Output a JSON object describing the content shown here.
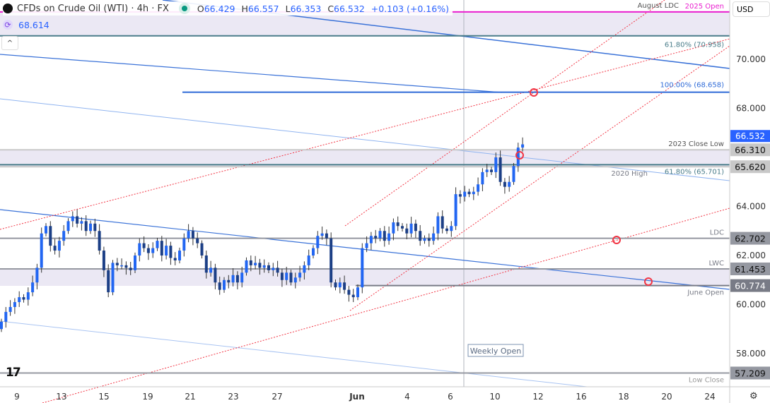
{
  "header": {
    "symbol": "CFDs on Crude Oil (WTI) · 4h · FX",
    "open_label": "O",
    "open": "66.429",
    "high_label": "H",
    "high": "66.557",
    "low_label": "L",
    "low": "66.353",
    "close_label": "C",
    "close": "66.532",
    "change": "+0.103 (+0.16%)"
  },
  "indicator": {
    "value": "68.614",
    "icon": "refresh-icon"
  },
  "currency": "USD",
  "colors": {
    "up": "#2266f2",
    "down": "#1c3f86",
    "fib_teal": "#4a7d8a",
    "magenta": "#e91ecf",
    "zone": "#ebe8f4",
    "red": "#f23645"
  },
  "chart_data": {
    "type": "candlestick",
    "symbol": "CFDs on Crude Oil (WTI)",
    "timeframe": "4h",
    "ylim": [
      56.6,
      72.4
    ],
    "y_ticks": [
      "70.000",
      "68.000",
      "64.000",
      "62.000",
      "60.000",
      "58.000"
    ],
    "x_ticks": [
      "9",
      "13",
      "15",
      "19",
      "21",
      "23",
      "27",
      "Jun",
      "4",
      "6",
      "10",
      "12",
      "16",
      "18",
      "20",
      "24"
    ],
    "closes": [
      59.3,
      59.7,
      59.9,
      60.1,
      60.3,
      60.2,
      60.5,
      60.9,
      61.5,
      62.9,
      63.2,
      62.4,
      62.2,
      62.6,
      63.0,
      63.4,
      63.6,
      63.3,
      63.4,
      63.0,
      63.3,
      63.0,
      62.2,
      61.4,
      60.5,
      61.7,
      61.6,
      61.6,
      61.5,
      61.4,
      62.0,
      62.5,
      62.3,
      62.1,
      62.3,
      62.6,
      62.0,
      62.4,
      61.9,
      61.8,
      62.2,
      62.7,
      63.0,
      62.7,
      62.5,
      62.0,
      61.3,
      61.5,
      60.9,
      60.6,
      61.0,
      60.9,
      61.2,
      60.9,
      61.3,
      61.8,
      61.6,
      61.7,
      61.5,
      61.6,
      61.4,
      61.5,
      61.3,
      61.0,
      61.3,
      60.9,
      61.1,
      61.3,
      61.6,
      62.0,
      62.3,
      62.8,
      62.9,
      62.7,
      60.9,
      60.7,
      60.9,
      60.6,
      60.4,
      60.3,
      60.7,
      62.3,
      62.5,
      62.8,
      62.7,
      63.0,
      62.6,
      62.9,
      63.35,
      63.2,
      63.1,
      62.9,
      63.3,
      63.0,
      62.6,
      62.7,
      62.6,
      62.9,
      63.6,
      63.1,
      63.0,
      63.2,
      64.5,
      64.4,
      64.6,
      64.5,
      64.6,
      64.9,
      65.4,
      65.5,
      65.4,
      66.0,
      65.0,
      64.8,
      65.0,
      65.65,
      66.4,
      66.532
    ],
    "levels": [
      {
        "price": 71.93,
        "label": "2025 Open",
        "price_tag": "",
        "color": "#e91ecf"
      },
      {
        "price": 70.958,
        "label": "61.80% (70.958)",
        "price_tag": "",
        "color": "#4a7d8a"
      },
      {
        "price": 68.658,
        "label": "100.00% (68.658)",
        "price_tag": "",
        "color": "#2f6bd8"
      },
      {
        "price": 66.31,
        "label": "2023 Close Low",
        "price_tag": "66.310",
        "color": "#c8c8c8"
      },
      {
        "price": 65.701,
        "label": "61.80% (65.701)",
        "price_tag": "",
        "color": "#4a7d8a"
      },
      {
        "price": 65.62,
        "label": "2020 High",
        "price_tag": "65.620",
        "color": "#c8c8c8"
      },
      {
        "price": 62.702,
        "label": "LDC",
        "price_tag": "62.702",
        "color": "#9598a1"
      },
      {
        "price": 61.453,
        "label": "LWC",
        "price_tag": "61.453",
        "color": "#9598a1"
      },
      {
        "price": 60.774,
        "label": "June Open",
        "price_tag": "60.774",
        "color": "#787b86"
      },
      {
        "price": 57.209,
        "label": "Low Close",
        "price_tag": "57.209",
        "color": "#9598a1"
      }
    ],
    "annotations": {
      "top_label": "August LDC",
      "weekly_open": "Weekly Open"
    },
    "current_price": "66.532"
  }
}
